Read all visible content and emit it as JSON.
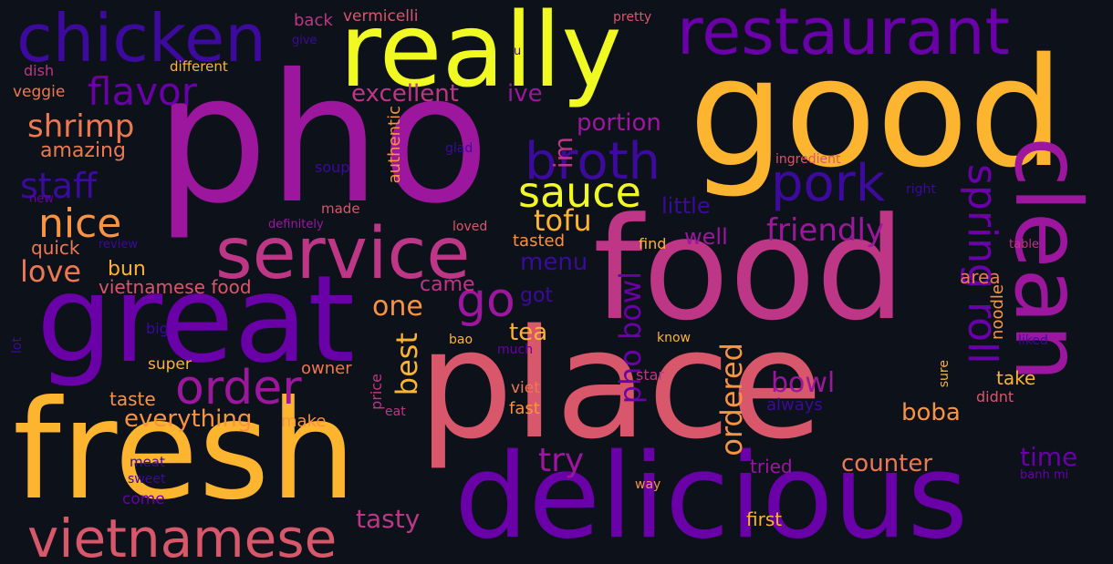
{
  "background_color": "#0d111a",
  "palette": {
    "deep_purple": "#3c0a9c",
    "purple": "#6a00a8",
    "magenta": "#9c179e",
    "pink": "#bd3786",
    "rose": "#d8576b",
    "orange": "#ed7953",
    "light_orange": "#f89441",
    "gold": "#fdb42f",
    "yellow": "#f0f921"
  },
  "words": [
    "pho",
    "good",
    "food",
    "place",
    "delicious",
    "fresh",
    "great",
    "really",
    "chicken",
    "restaurant",
    "clean",
    "service",
    "vietnamese",
    "broth",
    "pork",
    "sauce",
    "order",
    "nice",
    "flavor",
    "spring roll",
    "shrimp",
    "friendly",
    "staff",
    "go",
    "tofu",
    "love",
    "pho bowl",
    "ordered",
    "best",
    "bowl",
    "excellent",
    "try",
    "one",
    "menu",
    "time",
    "tasty",
    "everything",
    "vietnamese food",
    "portion",
    "tea",
    "counter",
    "boba",
    "little",
    "im",
    "ive",
    "amazing",
    "taste",
    "bun",
    "quick",
    "got",
    "well",
    "came",
    "tasted",
    "first",
    "authentic",
    "noodle",
    "area",
    "take",
    "tried",
    "owner",
    "super",
    "make",
    "price",
    "fast",
    "viet",
    "soup",
    "made",
    "find",
    "back",
    "vermicelli",
    "dish",
    "veggie",
    "different",
    "pretty",
    "give",
    "u",
    "glad",
    "new",
    "definitely",
    "loved",
    "review",
    "ingredient",
    "right",
    "table",
    "big",
    "lot",
    "bao",
    "much",
    "know",
    "liked",
    "star",
    "always",
    "eat",
    "sure",
    "didnt",
    "meat",
    "sweet",
    "come",
    "way",
    "banh mi"
  ]
}
